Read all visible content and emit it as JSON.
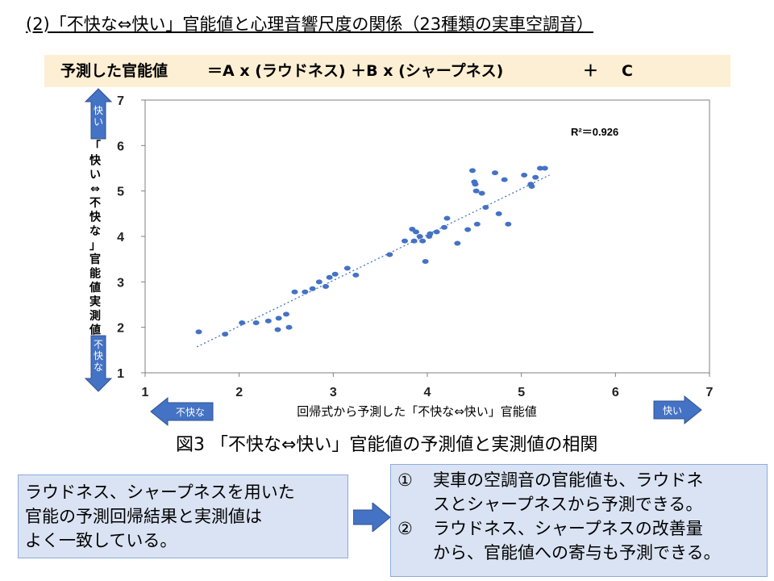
{
  "title": "(2)「不快な⇔快い」官能値と心理音響尺度の関係（23種類の実車空調音）",
  "formula": {
    "lhs": "予測した官能値",
    "rhs": "＝A x (ラウドネス)  ＋B x (シャープネス)",
    "plus": "＋",
    "c": "C"
  },
  "chart_data": {
    "type": "scatter",
    "xlabel": "回帰式から予測した「不快な⇔快い」官能値",
    "ylabel": "「快い⇔不快な」官能値実測値",
    "xlim": [
      1,
      7
    ],
    "ylim": [
      1,
      7
    ],
    "x_ticks": [
      "1",
      "2",
      "3",
      "4",
      "5",
      "6",
      "7"
    ],
    "y_ticks": [
      "1",
      "2",
      "3",
      "4",
      "5",
      "6",
      "7"
    ],
    "grid": false,
    "r2_label": "R²＝0.926",
    "trendline": {
      "x1": 1.55,
      "y1": 1.57,
      "x2": 5.3,
      "y2": 5.35
    },
    "axis_arrows": {
      "x_left": "不快な",
      "x_right": "快い",
      "y_top": "快い",
      "y_bottom": "不快な"
    },
    "points": [
      {
        "x": 1.57,
        "y": 1.9
      },
      {
        "x": 1.85,
        "y": 1.85
      },
      {
        "x": 2.03,
        "y": 2.1
      },
      {
        "x": 2.18,
        "y": 2.1
      },
      {
        "x": 2.31,
        "y": 2.14
      },
      {
        "x": 2.41,
        "y": 1.95
      },
      {
        "x": 2.42,
        "y": 2.2
      },
      {
        "x": 2.5,
        "y": 2.29
      },
      {
        "x": 2.53,
        "y": 2.0
      },
      {
        "x": 2.59,
        "y": 2.78
      },
      {
        "x": 2.7,
        "y": 2.78
      },
      {
        "x": 2.78,
        "y": 2.85
      },
      {
        "x": 2.85,
        "y": 3.0
      },
      {
        "x": 2.92,
        "y": 2.9
      },
      {
        "x": 2.96,
        "y": 3.1
      },
      {
        "x": 3.02,
        "y": 3.17
      },
      {
        "x": 3.15,
        "y": 3.3
      },
      {
        "x": 3.24,
        "y": 3.15
      },
      {
        "x": 3.6,
        "y": 3.6
      },
      {
        "x": 3.76,
        "y": 3.9
      },
      {
        "x": 3.84,
        "y": 4.16
      },
      {
        "x": 3.86,
        "y": 3.9
      },
      {
        "x": 3.88,
        "y": 4.1
      },
      {
        "x": 3.92,
        "y": 4.0
      },
      {
        "x": 3.95,
        "y": 3.9
      },
      {
        "x": 3.98,
        "y": 3.45
      },
      {
        "x": 4.02,
        "y": 4.0
      },
      {
        "x": 4.03,
        "y": 4.06
      },
      {
        "x": 4.1,
        "y": 4.1
      },
      {
        "x": 4.18,
        "y": 4.2
      },
      {
        "x": 4.21,
        "y": 4.4
      },
      {
        "x": 4.32,
        "y": 3.85
      },
      {
        "x": 4.43,
        "y": 4.15
      },
      {
        "x": 4.48,
        "y": 5.45
      },
      {
        "x": 4.5,
        "y": 5.2
      },
      {
        "x": 4.51,
        "y": 5.15
      },
      {
        "x": 4.52,
        "y": 5.0
      },
      {
        "x": 4.53,
        "y": 4.27
      },
      {
        "x": 4.58,
        "y": 4.95
      },
      {
        "x": 4.62,
        "y": 4.64
      },
      {
        "x": 4.72,
        "y": 5.4
      },
      {
        "x": 4.76,
        "y": 4.5
      },
      {
        "x": 4.82,
        "y": 5.25
      },
      {
        "x": 4.86,
        "y": 4.27
      },
      {
        "x": 5.03,
        "y": 5.35
      },
      {
        "x": 5.1,
        "y": 5.15
      },
      {
        "x": 5.11,
        "y": 5.1
      },
      {
        "x": 5.15,
        "y": 5.3
      },
      {
        "x": 5.2,
        "y": 5.5
      },
      {
        "x": 5.25,
        "y": 5.5
      }
    ]
  },
  "caption": "図3 「不快な⇔快い」官能値の予測値と実測値の相関",
  "left_box": {
    "line1": "ラウドネス、シャープネスを用いた",
    "line2": "官能の予測回帰結果と実測値は",
    "line3": "よく一致している。"
  },
  "right_box": {
    "num1": "①",
    "line1": "実車の空調音の官能値も、ラウドネ",
    "line1b": "スとシャープネスから予測できる。",
    "num2": "②",
    "line2": "ラウドネス、シャープネスの改善量",
    "line2b": "から、官能値への寄与も予測できる。"
  },
  "colors": {
    "marker": "#4472c4",
    "arrow_fill": "#4472c4",
    "box_fill": "#dae3f3",
    "box_border": "#8faadc",
    "formula_bg": "#fdefd3",
    "axis": "#595959",
    "connector": "#4472c4"
  }
}
